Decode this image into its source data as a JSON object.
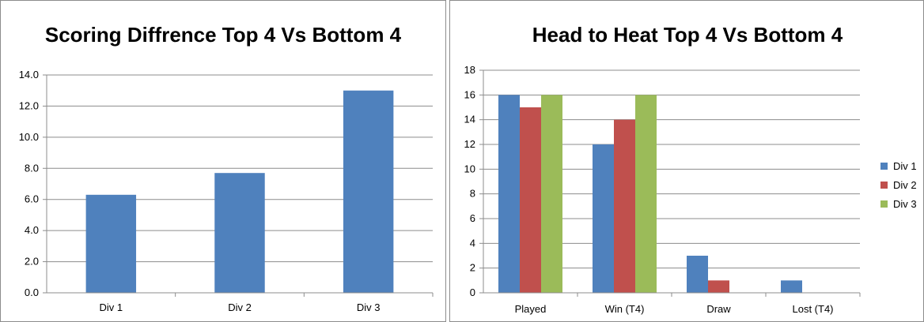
{
  "chart_data": [
    {
      "type": "bar",
      "title": "Scoring Diffrence Top 4 Vs Bottom 4",
      "categories": [
        "Div 1",
        "Div 2",
        "Div 3"
      ],
      "values": [
        6.3,
        7.7,
        13.0
      ],
      "ylim": [
        0,
        14
      ],
      "yticks": [
        "0.0",
        "2.0",
        "4.0",
        "6.0",
        "8.0",
        "10.0",
        "12.0",
        "14.0"
      ],
      "grid": true,
      "color": "#4f81bd"
    },
    {
      "type": "bar",
      "title": "Head to Heat Top 4 Vs Bottom 4",
      "categories": [
        "Played",
        "Win (T4)",
        "Draw",
        "Lost (T4)"
      ],
      "series": [
        {
          "name": "Div 1",
          "values": [
            16,
            12,
            3,
            1
          ],
          "color": "#4f81bd"
        },
        {
          "name": "Div 2",
          "values": [
            15,
            14,
            1,
            0
          ],
          "color": "#c0504d"
        },
        {
          "name": "Div 3",
          "values": [
            16,
            16,
            0,
            0
          ],
          "color": "#9bbb59"
        }
      ],
      "ylim": [
        0,
        18
      ],
      "yticks": [
        "0",
        "2",
        "4",
        "6",
        "8",
        "10",
        "12",
        "14",
        "16",
        "18"
      ],
      "grid": true,
      "legend": "right"
    }
  ]
}
